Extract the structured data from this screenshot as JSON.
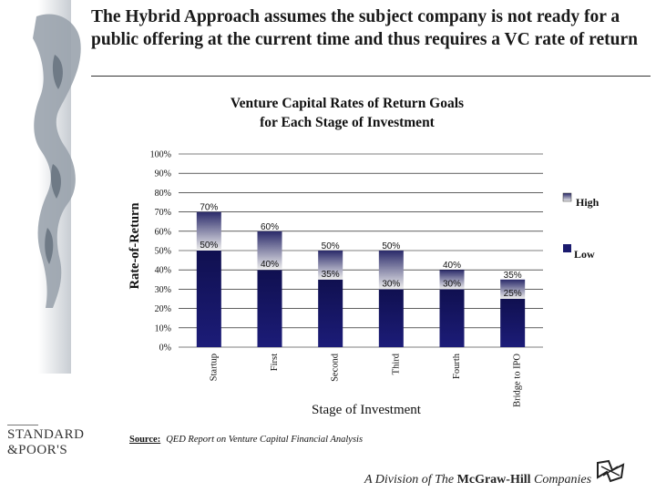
{
  "slide": {
    "title": "The Hybrid Approach assumes the subject company is not ready for a public offering at the current time and thus requires a VC rate of return"
  },
  "chart_data": {
    "type": "bar",
    "title_line1": "Venture Capital Rates of Return Goals",
    "title_line2": "for Each Stage of Investment",
    "xlabel": "Stage of Investment",
    "ylabel": "Rate-of-Return",
    "ylim": [
      0,
      100
    ],
    "yticks": [
      "0%",
      "10%",
      "20%",
      "30%",
      "40%",
      "50%",
      "60%",
      "70%",
      "80%",
      "90%",
      "100%"
    ],
    "ytick_values": [
      0,
      10,
      20,
      30,
      40,
      50,
      60,
      70,
      80,
      90,
      100
    ],
    "categories": [
      "Startup",
      "First",
      "Second",
      "Third",
      "Fourth",
      "Bridge to IPO"
    ],
    "series": [
      {
        "name": "Low",
        "values": [
          50,
          40,
          35,
          30,
          30,
          25
        ]
      },
      {
        "name": "High",
        "values": [
          70,
          60,
          50,
          50,
          40,
          35
        ]
      }
    ],
    "high_labels": [
      "70%",
      "60%",
      "50%",
      "50%",
      "40%",
      "35%"
    ],
    "low_labels": [
      "50%",
      "40%",
      "35%",
      "30%",
      "30%",
      "25%"
    ],
    "grid": true,
    "legend_position": "right",
    "colors": {
      "low": "#1a1a6e",
      "high_top": "#2a2a6a",
      "high_bottom": "#eeeeee",
      "grid": "#000000"
    }
  },
  "source": {
    "label": "Source:",
    "text": "QED Report on Venture Capital Financial Analysis"
  },
  "footer": {
    "logo_line1": "STANDARD",
    "logo_line2": "&POOR'S",
    "division_prefix": "A Division of The ",
    "division_brand": "McGraw-Hill",
    "division_suffix": " Companies"
  }
}
